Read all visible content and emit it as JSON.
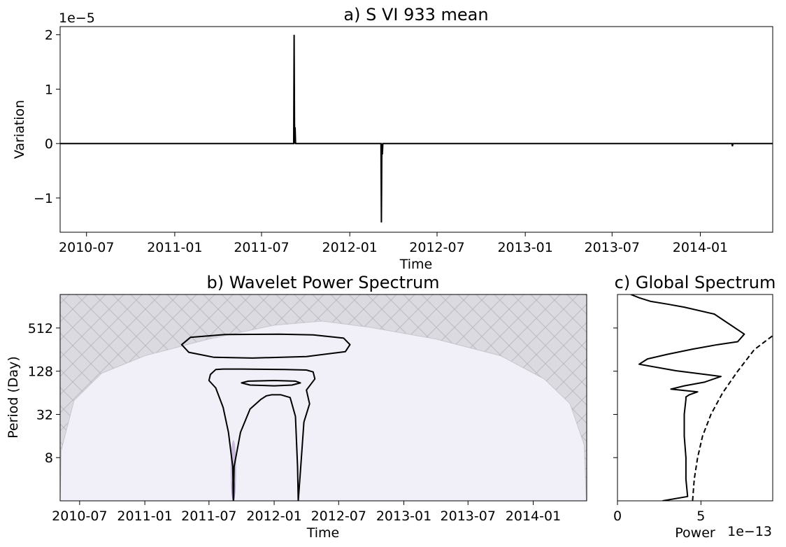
{
  "chart_data": [
    {
      "type": "line",
      "panel": "a",
      "title": "a) S VI 933 mean",
      "xlabel": "Time",
      "ylabel": "Variation",
      "offset_text": "1e−5",
      "xlim": [
        "2010-05-07",
        "2014-06-01"
      ],
      "ylim": [
        -1.63,
        2.15
      ],
      "x_ticks": [
        "2010-07",
        "2011-01",
        "2011-07",
        "2012-01",
        "2012-07",
        "2013-01",
        "2013-07",
        "2014-01"
      ],
      "y_ticks": [
        -1,
        0,
        1,
        2
      ],
      "y_tick_labels": [
        "−1",
        "0",
        "1",
        "2"
      ],
      "line_color": "#000000",
      "series": [
        {
          "x": [
            "2010-05-07",
            "2011-09-06",
            "2011-09-07",
            "2011-09-08",
            "2011-09-09",
            "2011-09-10",
            "2012-03-06",
            "2012-03-07",
            "2012-03-08",
            "2012-03-09",
            "2012-03-10",
            "2014-03-08",
            "2014-03-09",
            "2014-03-10",
            "2014-06-01"
          ],
          "y": [
            0,
            0,
            2.0,
            0,
            0.3,
            0,
            0,
            -1.45,
            0,
            -0.2,
            0,
            0,
            -0.05,
            0,
            0
          ]
        }
      ]
    },
    {
      "type": "heatmap",
      "panel": "b",
      "title": "b) Wavelet Power Spectrum",
      "xlabel": "Time",
      "ylabel": "Period (Day)",
      "xlim": [
        "2010-05-07",
        "2014-06-01"
      ],
      "y_scale": "log2",
      "ylim": [
        2,
        1500
      ],
      "x_ticks": [
        "2010-07",
        "2011-01",
        "2011-07",
        "2012-01",
        "2012-07",
        "2013-01",
        "2013-07",
        "2014-01"
      ],
      "y_ticks": [
        8,
        32,
        128,
        512
      ],
      "background_color": "#f1f0f8",
      "cone_of_influence_fill": "#dbdae0",
      "hatch_color": "#bcbbc2",
      "power_blob_color": "#7b5aa6",
      "contour_color": "#000000",
      "power_blob": {
        "x": "2011-09-08",
        "period_min": 2,
        "period_max": 14
      },
      "cone_of_influence": {
        "x": [
          "2010-05-07",
          "2010-05-10",
          "2010-06-15",
          "2010-09-01",
          "2011-01-01",
          "2011-07-01",
          "2012-01-01",
          "2012-05-15",
          "2012-10-01",
          "2013-04-01",
          "2013-10-01",
          "2014-02-01",
          "2014-04-15",
          "2014-05-25",
          "2014-05-31"
        ],
        "period": [
          2,
          10,
          50,
          120,
          210,
          360,
          560,
          640,
          520,
          360,
          210,
          100,
          45,
          12,
          2
        ]
      },
      "contours": [
        {
          "label": "upper",
          "x": [
            "2011-04-15",
            "2011-05-10",
            "2011-08-15",
            "2012-01-15",
            "2012-04-20",
            "2012-07-15",
            "2012-08-02",
            "2012-07-20",
            "2012-04-01",
            "2011-11-01",
            "2011-07-15",
            "2011-05-05",
            "2011-04-15"
          ],
          "period": [
            300,
            380,
            415,
            420,
            410,
            370,
            300,
            240,
            205,
            195,
            200,
            235,
            300
          ]
        },
        {
          "label": "middle",
          "x": [
            "2011-07-05",
            "2011-07-01",
            "2011-07-20",
            "2011-08-10",
            "2011-08-25",
            "2011-09-06",
            "2011-09-08",
            "2011-09-10",
            "2011-09-28",
            "2011-10-25",
            "2011-11-25",
            "2011-12-10",
            "2011-12-25",
            "2012-01-20",
            "2012-02-15",
            "2012-03-01",
            "2012-03-07",
            "2012-03-09",
            "2012-03-16",
            "2012-03-25",
            "2012-04-10",
            "2012-04-01",
            "2012-04-25",
            "2012-04-20",
            "2012-04-01",
            "2012-02-01",
            "2011-10-01",
            "2011-08-10",
            "2011-07-20",
            "2011-07-05"
          ],
          "period": [
            115,
            95,
            75,
            40,
            18,
            6,
            2,
            6,
            18,
            38,
            52,
            58,
            60,
            60,
            55,
            30,
            6,
            2,
            6,
            25,
            45,
            70,
            100,
            125,
            133,
            135,
            137,
            137,
            135,
            115
          ]
        },
        {
          "label": "small",
          "x": [
            "2011-10-01",
            "2011-10-20",
            "2012-01-01",
            "2012-03-01",
            "2012-03-15",
            "2012-02-20",
            "2012-01-01",
            "2011-10-25",
            "2011-10-01"
          ],
          "period": [
            88,
            93,
            95,
            93,
            88,
            82,
            80,
            82,
            88
          ]
        }
      ]
    },
    {
      "type": "line",
      "panel": "c",
      "title": "c) Global Spectrum",
      "xlabel": "Power",
      "offset_text": "1e−13",
      "xlim": [
        0,
        9.3
      ],
      "y_scale": "log2",
      "ylim": [
        2,
        1500
      ],
      "x_ticks": [
        0,
        5
      ],
      "series": [
        {
          "style": "solid",
          "color": "#000000",
          "power": [
            0.8,
            1.3,
            2.0,
            3.0,
            4.0,
            5.8,
            7.6,
            7.2,
            6.0,
            4.5,
            3.0,
            1.8,
            1.3,
            3.5,
            6.2,
            5.2,
            4.0,
            3.2,
            4.8,
            4.3,
            4.1,
            4.1,
            4.0,
            4.0,
            4.1,
            4.1,
            4.2,
            2.7
          ],
          "period": [
            1500,
            1350,
            1200,
            1100,
            1000,
            800,
            420,
            330,
            300,
            260,
            220,
            190,
            160,
            130,
            108,
            90,
            80,
            72,
            66,
            60,
            56,
            52,
            32,
            16,
            8,
            4,
            2.3,
            2
          ]
        },
        {
          "style": "dashed",
          "color": "#000000",
          "power": [
            4.5,
            4.6,
            4.8,
            5.1,
            5.6,
            6.3,
            7.2,
            8.2,
            9.3
          ],
          "period": [
            2,
            4,
            8,
            16,
            32,
            64,
            128,
            256,
            400
          ]
        }
      ]
    }
  ]
}
